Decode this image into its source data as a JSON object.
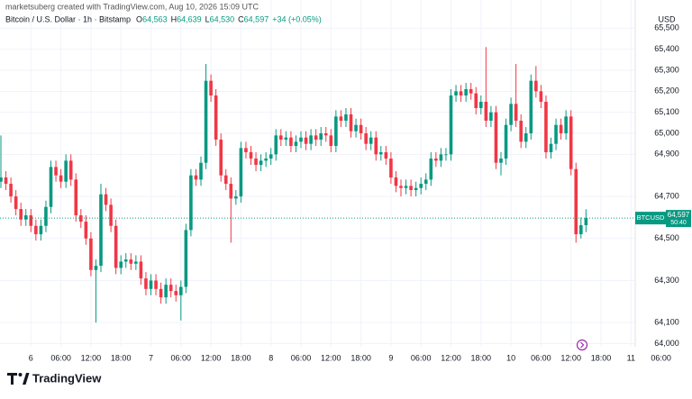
{
  "chart_data": {
    "type": "candlestick",
    "attribution": "marketsuberg created with TradingView.com, Aug 10, 2026 15:09 UTC",
    "title": "Bitcoin / U.S. Dollar · 1h · Bitstamp",
    "ohlc_legend": [
      {
        "key": "O",
        "value": "64,563"
      },
      {
        "key": "H",
        "value": "64,639"
      },
      {
        "key": "L",
        "value": "64,530"
      },
      {
        "key": "C",
        "value": "64,597"
      }
    ],
    "change": "+34 (+0.05%)",
    "currency": "USD",
    "symbol": "BTCUSD",
    "countdown": "50:40",
    "last_price_label": "64,597",
    "brand": "TradingView",
    "up_color": "#089981",
    "down_color": "#f23645",
    "grid": true,
    "ylim": [
      63985,
      65634
    ],
    "yticks": [
      {
        "value": 64000,
        "label": "64,000"
      },
      {
        "value": 64100,
        "label": "64,100"
      },
      {
        "value": 64300,
        "label": "64,300"
      },
      {
        "value": 64500,
        "label": "64,500"
      },
      {
        "value": 64700,
        "label": "64,700"
      },
      {
        "value": 64900,
        "label": "64,900"
      },
      {
        "value": 65000,
        "label": "65,000"
      },
      {
        "value": 65100,
        "label": "65,100"
      },
      {
        "value": 65200,
        "label": "65,200"
      },
      {
        "value": 65300,
        "label": "65,300"
      },
      {
        "value": 65400,
        "label": "65,400"
      },
      {
        "value": 65500,
        "label": "65,500"
      }
    ],
    "categories": [
      null,
      null,
      null,
      null,
      null,
      null,
      "6",
      null,
      null,
      null,
      null,
      null,
      "06:00",
      null,
      null,
      null,
      null,
      null,
      "12:00",
      null,
      null,
      null,
      null,
      null,
      "18:00",
      null,
      null,
      null,
      null,
      null,
      "7",
      null,
      null,
      null,
      null,
      null,
      "06:00",
      null,
      null,
      null,
      null,
      null,
      "12:00",
      null,
      null,
      null,
      null,
      null,
      "18:00",
      null,
      null,
      null,
      null,
      null,
      "8",
      null,
      null,
      null,
      null,
      null,
      "06:00",
      null,
      null,
      null,
      null,
      null,
      "12:00",
      null,
      null,
      null,
      null,
      null,
      "18:00",
      null,
      null,
      null,
      null,
      null,
      "9",
      null,
      null,
      null,
      null,
      null,
      "06:00",
      null,
      null,
      null,
      null,
      null,
      "12:00",
      null,
      null,
      null,
      null,
      null,
      "18:00",
      null,
      null,
      null,
      null,
      null,
      "10",
      null,
      null,
      null,
      null,
      null,
      "06:00",
      null,
      null,
      null,
      null,
      null,
      "12:00",
      null,
      null,
      null,
      null,
      null,
      "18:00",
      null,
      null,
      null,
      null,
      null,
      "11",
      null,
      null,
      null,
      null,
      null,
      "06:00"
    ],
    "open": [
      64770,
      64790,
      64760,
      64700,
      64640,
      64590,
      64610,
      64560,
      64520,
      64560,
      64650,
      64840,
      64800,
      64770,
      64870,
      64780,
      64610,
      64580,
      64500,
      64350,
      64370,
      64710,
      64660,
      64560,
      64360,
      64390,
      64400,
      64380,
      64390,
      64310,
      64260,
      64300,
      64260,
      64220,
      64280,
      64250,
      64230,
      64270,
      64540,
      64800,
      64780,
      64860,
      65250,
      65180,
      64970,
      64800,
      64760,
      64690,
      64700,
      64930,
      64910,
      64880,
      64850,
      64870,
      64880,
      64900,
      64990,
      64970,
      64980,
      64940,
      64960,
      64980,
      64950,
      64990,
      64970,
      65000,
      64990,
      64940,
      65080,
      65060,
      65090,
      65010,
      65040,
      65000,
      64950,
      64980,
      64900,
      64910,
      64880,
      64790,
      64750,
      64740,
      64750,
      64730,
      64740,
      64760,
      64780,
      64880,
      64870,
      64900,
      64900,
      65180,
      65200,
      65180,
      65210,
      65190,
      65120,
      65150,
      65060,
      65100,
      64860,
      64880,
      65040,
      65140,
      65060,
      64960,
      65000,
      65250,
      65200,
      65150,
      64910,
      64950,
      65040,
      65000,
      65080,
      64830,
      64520,
      64563,
      null,
      null,
      null,
      null,
      null,
      null,
      null,
      null,
      null,
      null,
      null,
      null,
      null,
      null,
      null
    ],
    "high": [
      64990,
      64820,
      64790,
      64730,
      64670,
      64640,
      64640,
      64590,
      64590,
      64680,
      64870,
      64870,
      64830,
      64900,
      64900,
      64810,
      64640,
      64610,
      64530,
      64400,
      64760,
      64740,
      64690,
      64590,
      64420,
      64430,
      64430,
      64420,
      64420,
      64340,
      64330,
      64330,
      64290,
      64310,
      64310,
      64280,
      64300,
      64570,
      64830,
      64830,
      64890,
      65330,
      65280,
      65210,
      65000,
      64830,
      64790,
      64730,
      64960,
      64960,
      64940,
      64910,
      64900,
      64910,
      64930,
      65020,
      65020,
      65010,
      65010,
      64990,
      65010,
      65010,
      65020,
      65020,
      65030,
      65030,
      65020,
      65110,
      65110,
      65120,
      65120,
      65070,
      65070,
      65030,
      65010,
      65010,
      64940,
      64940,
      64910,
      64820,
      64780,
      64780,
      64780,
      64770,
      64790,
      64810,
      64910,
      64910,
      64930,
      64930,
      65210,
      65230,
      65230,
      65240,
      65240,
      65220,
      65180,
      65410,
      65130,
      65130,
      64910,
      65070,
      65170,
      65330,
      65090,
      65030,
      65280,
      65320,
      65230,
      65180,
      64980,
      65070,
      65070,
      65110,
      65110,
      64860,
      64600,
      64639,
      null,
      null,
      null,
      null,
      null,
      null,
      null,
      null,
      null,
      null,
      null,
      null,
      null,
      null,
      null
    ],
    "low": [
      64740,
      64730,
      64670,
      64610,
      64560,
      64560,
      64530,
      64490,
      64490,
      64530,
      64620,
      64770,
      64740,
      64740,
      64750,
      64580,
      64550,
      64470,
      64320,
      64100,
      64340,
      64630,
      64530,
      64330,
      64330,
      64360,
      64350,
      64350,
      64280,
      64230,
      64230,
      64230,
      64190,
      64190,
      64220,
      64200,
      64110,
      64240,
      64510,
      64750,
      64750,
      64830,
      65150,
      64940,
      64770,
      64730,
      64480,
      64660,
      64670,
      64880,
      64850,
      64820,
      64820,
      64840,
      64850,
      64870,
      64940,
      64940,
      64910,
      64910,
      64930,
      64920,
      64920,
      64940,
      64940,
      64960,
      64910,
      64910,
      65030,
      65030,
      64980,
      64980,
      64970,
      64920,
      64920,
      64870,
      64870,
      64850,
      64760,
      64720,
      64700,
      64710,
      64700,
      64700,
      64710,
      64730,
      64750,
      64840,
      64840,
      64870,
      64870,
      65150,
      65150,
      65150,
      65160,
      65090,
      65090,
      65030,
      65030,
      64830,
      64800,
      64850,
      65010,
      65030,
      64930,
      64930,
      64970,
      65170,
      65120,
      64880,
      64880,
      64920,
      64970,
      64970,
      64800,
      64480,
      64500,
      64530,
      null,
      null,
      null,
      null,
      null,
      null,
      null,
      null,
      null,
      null,
      null,
      null,
      null,
      null,
      null
    ],
    "close": [
      64790,
      64760,
      64700,
      64640,
      64590,
      64610,
      64560,
      64520,
      64560,
      64650,
      64840,
      64800,
      64770,
      64870,
      64780,
      64610,
      64580,
      64500,
      64350,
      64370,
      64710,
      64660,
      64560,
      64360,
      64390,
      64400,
      64380,
      64390,
      64310,
      64260,
      64300,
      64260,
      64220,
      64280,
      64250,
      64230,
      64270,
      64540,
      64800,
      64780,
      64860,
      65250,
      65180,
      64970,
      64800,
      64760,
      64690,
      64700,
      64930,
      64910,
      64880,
      64850,
      64870,
      64880,
      64900,
      64990,
      64970,
      64980,
      64940,
      64960,
      64980,
      64950,
      64990,
      64970,
      65000,
      64990,
      64940,
      65080,
      65060,
      65090,
      65010,
      65040,
      65000,
      64950,
      64980,
      64900,
      64910,
      64880,
      64790,
      64750,
      64740,
      64750,
      64730,
      64740,
      64760,
      64780,
      64880,
      64870,
      64900,
      64900,
      65180,
      65200,
      65180,
      65210,
      65190,
      65120,
      65150,
      65060,
      65100,
      64860,
      64880,
      65040,
      65140,
      65060,
      64960,
      65000,
      65250,
      65200,
      65150,
      64910,
      64950,
      65040,
      65000,
      65080,
      64830,
      64520,
      64563,
      64597,
      null,
      null,
      null,
      null,
      null,
      null,
      null,
      null,
      null,
      null,
      null,
      null,
      null,
      null,
      null
    ]
  }
}
